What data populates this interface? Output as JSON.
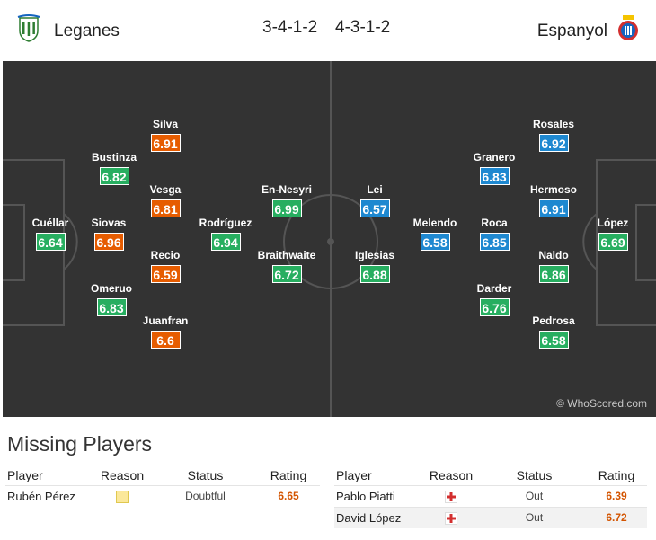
{
  "header": {
    "home_team": "Leganes",
    "away_team": "Espanyol",
    "home_formation": "3-4-1-2",
    "away_formation": "4-3-1-2"
  },
  "pitch": {
    "watermark": "© WhoScored.com",
    "colors": {
      "green": "#27ae60",
      "orange": "#e65c00",
      "blue": "#1e88d0"
    },
    "home_players": [
      {
        "name": "Cuéllar",
        "rating": "6.64",
        "color": "green"
      },
      {
        "name": "Bustinza",
        "rating": "6.82",
        "color": "green"
      },
      {
        "name": "Siovas",
        "rating": "6.96",
        "color": "orange"
      },
      {
        "name": "Omeruo",
        "rating": "6.83",
        "color": "green"
      },
      {
        "name": "Silva",
        "rating": "6.91",
        "color": "orange"
      },
      {
        "name": "Vesga",
        "rating": "6.81",
        "color": "orange"
      },
      {
        "name": "Recio",
        "rating": "6.59",
        "color": "orange"
      },
      {
        "name": "Juanfran",
        "rating": "6.6",
        "color": "orange"
      },
      {
        "name": "Rodríguez",
        "rating": "6.94",
        "color": "green"
      },
      {
        "name": "En-Nesyri",
        "rating": "6.99",
        "color": "green"
      },
      {
        "name": "Braithwaite",
        "rating": "6.72",
        "color": "green"
      }
    ],
    "away_players": [
      {
        "name": "Lei",
        "rating": "6.57",
        "color": "blue"
      },
      {
        "name": "Iglesias",
        "rating": "6.88",
        "color": "green"
      },
      {
        "name": "Melendo",
        "rating": "6.58",
        "color": "blue"
      },
      {
        "name": "Granero",
        "rating": "6.83",
        "color": "blue"
      },
      {
        "name": "Roca",
        "rating": "6.85",
        "color": "blue"
      },
      {
        "name": "Darder",
        "rating": "6.76",
        "color": "green"
      },
      {
        "name": "Rosales",
        "rating": "6.92",
        "color": "blue"
      },
      {
        "name": "Hermoso",
        "rating": "6.91",
        "color": "blue"
      },
      {
        "name": "Naldo",
        "rating": "6.86",
        "color": "green"
      },
      {
        "name": "Pedrosa",
        "rating": "6.58",
        "color": "green"
      },
      {
        "name": "López",
        "rating": "6.69",
        "color": "green"
      }
    ]
  },
  "missing": {
    "title": "Missing Players",
    "columns": [
      "Player",
      "Reason",
      "Status",
      "Rating"
    ],
    "home": [
      {
        "player": "Rubén Pérez",
        "reason_icon": "yellow-square-icon",
        "status": "Doubtful",
        "rating": "6.65"
      }
    ],
    "away": [
      {
        "player": "Pablo Piatti",
        "reason_icon": "red-cross-icon",
        "status": "Out",
        "rating": "6.39"
      },
      {
        "player": "David López",
        "reason_icon": "red-cross-icon",
        "status": "Out",
        "rating": "6.72"
      }
    ]
  }
}
